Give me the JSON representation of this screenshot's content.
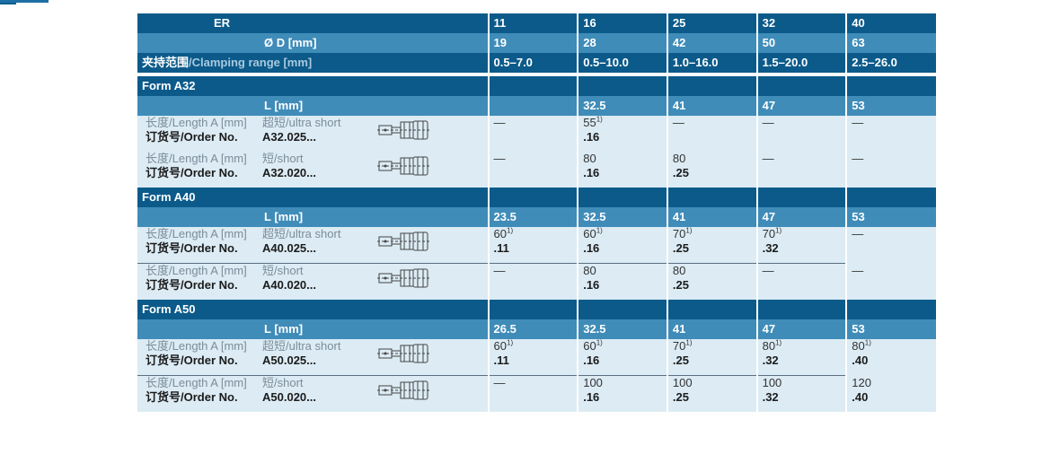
{
  "header": {
    "er_label": "ER",
    "er_values": [
      "11",
      "16",
      "25",
      "32",
      "40"
    ],
    "dia_label": "Ø D [mm]",
    "dia_values": [
      "19",
      "28",
      "42",
      "50",
      "63"
    ],
    "clamp_cn": "夹持范围",
    "clamp_en": "/Clamping range [mm]",
    "clamp_values": [
      "0.5–7.0",
      "0.5–10.0",
      "1.0–16.0",
      "1.5–20.0",
      "2.5–26.0"
    ]
  },
  "labels": {
    "length_cn": "长度",
    "length_en": "/Length A [mm]",
    "order_cn": "订货号",
    "order_en": "/Order No.",
    "l_mm": "L [mm]",
    "sup1": "1)"
  },
  "forms": [
    {
      "title": "Form A32",
      "l_values": [
        "",
        "32.5",
        "41",
        "47",
        "53"
      ],
      "rows": [
        {
          "type_cn": "超短",
          "type_en": "/ultra short",
          "order": "A32.025...",
          "cells": [
            {
              "len": "—",
              "order": ""
            },
            {
              "len": "55",
              "sup": true,
              "order": ".16"
            },
            {
              "len": "—",
              "order": ""
            },
            {
              "len": "—",
              "order": ""
            },
            {
              "len": "—",
              "order": ""
            }
          ]
        },
        {
          "type_cn": "短",
          "type_en": "/short",
          "order": "A32.020...",
          "cells": [
            {
              "len": "—",
              "order": ""
            },
            {
              "len": "80",
              "order": ".16"
            },
            {
              "len": "80",
              "order": ".25"
            },
            {
              "len": "—",
              "order": ""
            },
            {
              "len": "—",
              "order": ""
            }
          ]
        }
      ]
    },
    {
      "title": "Form A40",
      "l_values": [
        "23.5",
        "32.5",
        "41",
        "47",
        "53"
      ],
      "rows": [
        {
          "type_cn": "超短",
          "type_en": "/ultra short",
          "order": "A40.025...",
          "cells": [
            {
              "len": "60",
              "sup": true,
              "order": ".11"
            },
            {
              "len": "60",
              "sup": true,
              "order": ".16"
            },
            {
              "len": "70",
              "sup": true,
              "order": ".25"
            },
            {
              "len": "70",
              "sup": true,
              "order": ".32"
            },
            {
              "len": "—",
              "order": ""
            }
          ]
        },
        {
          "type_cn": "短",
          "type_en": "/short",
          "order": "A40.020...",
          "cells": [
            {
              "len": "—",
              "order": ""
            },
            {
              "len": "80",
              "order": ".16"
            },
            {
              "len": "80",
              "order": ".25"
            },
            {
              "len": "—",
              "order": ""
            },
            {
              "len": "—",
              "order": ""
            }
          ]
        }
      ]
    },
    {
      "title": "Form A50",
      "l_values": [
        "26.5",
        "32.5",
        "41",
        "47",
        "53"
      ],
      "rows": [
        {
          "type_cn": "超短",
          "type_en": "/ultra short",
          "order": "A50.025...",
          "cells": [
            {
              "len": "60",
              "sup": true,
              "order": ".11"
            },
            {
              "len": "60",
              "sup": true,
              "order": ".16"
            },
            {
              "len": "70",
              "sup": true,
              "order": ".25"
            },
            {
              "len": "80",
              "sup": true,
              "order": ".32"
            },
            {
              "len": "80",
              "sup": true,
              "order": ".40"
            }
          ]
        },
        {
          "type_cn": "短",
          "type_en": "/short",
          "order": "A50.020...",
          "cells": [
            {
              "len": "—",
              "order": ""
            },
            {
              "len": "100",
              "order": ".16"
            },
            {
              "len": "100",
              "order": ".25"
            },
            {
              "len": "100",
              "order": ".32"
            },
            {
              "len": "120",
              "order": ".40"
            }
          ]
        }
      ]
    }
  ]
}
